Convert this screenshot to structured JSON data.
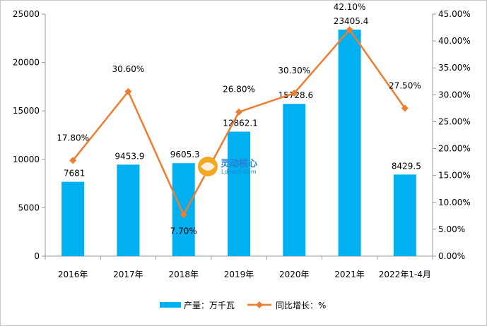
{
  "chart_data": {
    "type": "bar+line",
    "categories": [
      "2016年",
      "2017年",
      "2018年",
      "2019年",
      "2020年",
      "2021年",
      "2022年1-4月"
    ],
    "series": [
      {
        "name": "产量：万千瓦",
        "type": "bar",
        "axis": "left",
        "values": [
          7681,
          9453.9,
          9605.3,
          12862.1,
          15728.6,
          23405.4,
          8429.5
        ],
        "labels": [
          "7681",
          "9453.9",
          "9605.3",
          "12862.1",
          "15728.6",
          "23405.4",
          "8429.5"
        ]
      },
      {
        "name": "同比增长：%",
        "type": "line",
        "axis": "right",
        "values": [
          17.8,
          30.6,
          7.7,
          26.8,
          30.3,
          42.1,
          27.5
        ],
        "labels": [
          "17.80%",
          "30.60%",
          "7.70%",
          "26.80%",
          "30.30%",
          "42.10%",
          "27.50%"
        ]
      }
    ],
    "y_left": {
      "range": [
        0,
        25000
      ],
      "ticks": [
        "0",
        "5000",
        "10000",
        "15000",
        "20000",
        "25000"
      ]
    },
    "y_right": {
      "range": [
        0,
        45
      ],
      "ticks": [
        "0.00%",
        "5.00%",
        "10.00%",
        "15.00%",
        "20.00%",
        "25.00%",
        "30.00%",
        "35.00%",
        "40.00%",
        "45.00%"
      ]
    },
    "legend": "bottom-center",
    "grid": false,
    "colors": {
      "bar": "#00b0f0",
      "line": "#ed7d31"
    }
  },
  "watermark": {
    "name": "灵动核心",
    "url": "Ldhxcn.Com"
  }
}
